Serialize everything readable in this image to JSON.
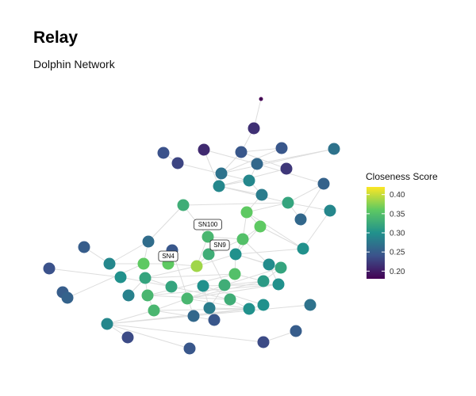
{
  "chart_data": {
    "type": "network",
    "title": "Relay",
    "subtitle": "Dolphin Network",
    "legend": {
      "title": "Closeness Score",
      "ticks": [
        0.2,
        0.25,
        0.3,
        0.35,
        0.4
      ],
      "tick_labels": [
        "0.20",
        "0.25",
        "0.30",
        "0.35",
        "0.40"
      ],
      "range": [
        0.18,
        0.42
      ],
      "placement": "right",
      "palette": [
        "#440154",
        "#3b528b",
        "#21918c",
        "#5ec962",
        "#fde725"
      ]
    },
    "edge_color": "#dddddd",
    "nodes": [
      {
        "id": "n1",
        "score": 0.18,
        "small": true
      },
      {
        "id": "n2",
        "score": 0.215
      },
      {
        "id": "n3",
        "score": 0.245
      },
      {
        "id": "n4",
        "score": 0.245
      },
      {
        "id": "n5",
        "score": 0.27
      },
      {
        "id": "n6",
        "score": 0.24
      },
      {
        "id": "n7",
        "score": 0.21
      },
      {
        "id": "n8",
        "score": 0.23
      },
      {
        "id": "n9",
        "score": 0.26
      },
      {
        "id": "n10",
        "score": 0.22
      },
      {
        "id": "n11",
        "score": 0.27
      },
      {
        "id": "n12",
        "score": 0.29
      },
      {
        "id": "n13",
        "score": 0.29
      },
      {
        "id": "n14",
        "score": 0.28
      },
      {
        "id": "n15",
        "score": 0.255
      },
      {
        "id": "n16",
        "score": 0.33
      },
      {
        "id": "n17",
        "score": 0.32
      },
      {
        "id": "n18",
        "score": 0.29
      },
      {
        "id": "n19",
        "score": 0.36
      },
      {
        "id": "n20",
        "score": 0.26
      },
      {
        "id": "n21",
        "score": 0.3
      },
      {
        "id": "n22",
        "score": 0.36
      },
      {
        "id": "n23",
        "score": 0.265
      },
      {
        "id": "SN100",
        "score": 0.34,
        "label": "SN100"
      },
      {
        "id": "n25",
        "score": 0.35
      },
      {
        "id": "n26",
        "score": 0.25
      },
      {
        "id": "n27",
        "score": 0.29
      },
      {
        "id": "SN9",
        "score": 0.33,
        "label": "SN9"
      },
      {
        "id": "n29",
        "score": 0.3
      },
      {
        "id": "n30",
        "score": 0.24
      },
      {
        "id": "n31",
        "score": 0.295
      },
      {
        "id": "n32",
        "score": 0.36
      },
      {
        "id": "SN4",
        "score": 0.36,
        "label": "SN4"
      },
      {
        "id": "n34",
        "score": 0.385
      },
      {
        "id": "n35",
        "score": 0.3
      },
      {
        "id": "n36",
        "score": 0.32
      },
      {
        "id": "n37",
        "score": 0.32
      },
      {
        "id": "n38",
        "score": 0.35
      },
      {
        "id": "n39",
        "score": 0.32
      },
      {
        "id": "n40",
        "score": 0.31
      },
      {
        "id": "n41",
        "score": 0.3
      },
      {
        "id": "n42",
        "score": 0.3
      },
      {
        "id": "n43",
        "score": 0.25
      },
      {
        "id": "n44",
        "score": 0.255
      },
      {
        "id": "n45",
        "score": 0.33
      },
      {
        "id": "n46",
        "score": 0.285
      },
      {
        "id": "n47",
        "score": 0.34
      },
      {
        "id": "n48",
        "score": 0.34
      },
      {
        "id": "n49",
        "score": 0.33
      },
      {
        "id": "n50",
        "score": 0.3
      },
      {
        "id": "n51",
        "score": 0.28
      },
      {
        "id": "n52",
        "score": 0.34
      },
      {
        "id": "n53",
        "score": 0.3
      },
      {
        "id": "n54",
        "score": 0.27
      },
      {
        "id": "n55",
        "score": 0.26
      },
      {
        "id": "n56",
        "score": 0.245
      },
      {
        "id": "n57",
        "score": 0.29
      },
      {
        "id": "n58",
        "score": 0.25
      },
      {
        "id": "n59",
        "score": 0.235
      },
      {
        "id": "n60",
        "score": 0.245
      },
      {
        "id": "n61",
        "score": 0.235
      },
      {
        "id": "n62",
        "score": 0.245
      }
    ],
    "edges": [
      [
        "n1",
        "n2"
      ],
      [
        "n2",
        "n3"
      ],
      [
        "n3",
        "n4"
      ],
      [
        "n3",
        "n10"
      ],
      [
        "n4",
        "n11"
      ],
      [
        "n3",
        "n11"
      ],
      [
        "n5",
        "n11"
      ],
      [
        "n5",
        "n9"
      ],
      [
        "n7",
        "n9"
      ],
      [
        "n7",
        "n13"
      ],
      [
        "n6",
        "n8"
      ],
      [
        "n8",
        "n12"
      ],
      [
        "n9",
        "n12"
      ],
      [
        "n9",
        "n15"
      ],
      [
        "n10",
        "n13"
      ],
      [
        "n11",
        "n13"
      ],
      [
        "n12",
        "n13"
      ],
      [
        "n12",
        "n14"
      ],
      [
        "n13",
        "n14"
      ],
      [
        "n13",
        "n17"
      ],
      [
        "n14",
        "n19"
      ],
      [
        "n16",
        "n17"
      ],
      [
        "n15",
        "n17"
      ],
      [
        "n15",
        "n20"
      ],
      [
        "n17",
        "n19"
      ],
      [
        "n17",
        "n18"
      ],
      [
        "n18",
        "n21"
      ],
      [
        "n19",
        "n22"
      ],
      [
        "n19",
        "n25"
      ],
      [
        "n22",
        "n25"
      ],
      [
        "n22",
        "n21"
      ],
      [
        "n19",
        "n21"
      ],
      [
        "n20",
        "n17"
      ],
      [
        "n22",
        "n29"
      ],
      [
        "n25",
        "n29"
      ],
      [
        "n25",
        "n31"
      ],
      [
        "n25",
        "SN9"
      ],
      [
        "n24",
        "n25"
      ],
      [
        "SN100",
        "n25"
      ],
      [
        "SN100",
        "n16"
      ],
      [
        "SN100",
        "n34"
      ],
      [
        "n23",
        "n27"
      ],
      [
        "n23",
        "n32"
      ],
      [
        "n27",
        "n32"
      ],
      [
        "n28",
        "n34"
      ],
      [
        "SN9",
        "n34"
      ],
      [
        "SN4",
        "n34"
      ],
      [
        "SN4",
        "n32"
      ],
      [
        "SN4",
        "n33"
      ],
      [
        "n32",
        "n33"
      ],
      [
        "n33",
        "n35"
      ],
      [
        "n34",
        "n36"
      ],
      [
        "n34",
        "n29"
      ],
      [
        "n29",
        "n38"
      ],
      [
        "n29",
        "n37"
      ],
      [
        "n31",
        "n37"
      ],
      [
        "n31",
        "n41"
      ],
      [
        "n30",
        "n35"
      ],
      [
        "n35",
        "n39"
      ],
      [
        "n33",
        "n39"
      ],
      [
        "n36",
        "n39"
      ],
      [
        "n36",
        "n38"
      ],
      [
        "n38",
        "n40"
      ],
      [
        "n38",
        "n47"
      ],
      [
        "n40",
        "n45"
      ],
      [
        "n40",
        "n48"
      ],
      [
        "n37",
        "n45"
      ],
      [
        "n41",
        "n48"
      ],
      [
        "n41",
        "n42"
      ],
      [
        "n45",
        "n48"
      ],
      [
        "n45",
        "n51"
      ],
      [
        "n42",
        "n51"
      ],
      [
        "n42",
        "n50"
      ],
      [
        "n48",
        "n52"
      ],
      [
        "n47",
        "n52"
      ],
      [
        "n47",
        "n49"
      ],
      [
        "n49",
        "n53"
      ],
      [
        "n52",
        "n53"
      ],
      [
        "n52",
        "n57"
      ],
      [
        "n53",
        "n57"
      ],
      [
        "n57",
        "n59"
      ],
      [
        "n57",
        "n60"
      ],
      [
        "n57",
        "n61"
      ],
      [
        "n56",
        "n52"
      ],
      [
        "n54",
        "n57"
      ],
      [
        "n55",
        "n53"
      ],
      [
        "n58",
        "n59"
      ],
      [
        "n62",
        "n55"
      ],
      [
        "n43",
        "n44"
      ],
      [
        "n44",
        "n32"
      ],
      [
        "n46",
        "n36"
      ],
      [
        "n26",
        "n27"
      ],
      [
        "n39",
        "n49"
      ],
      [
        "n33",
        "SN4"
      ],
      [
        "n36",
        "n47"
      ],
      [
        "n21",
        "n29"
      ],
      [
        "n16",
        "n23"
      ],
      [
        "n23",
        "n33"
      ],
      [
        "n48",
        "n53"
      ],
      [
        "n50",
        "n53"
      ],
      [
        "n51",
        "n53"
      ],
      [
        "n45",
        "SN9"
      ],
      [
        "n47",
        "n41"
      ],
      [
        "n29",
        "n31"
      ],
      [
        "n37",
        "n40"
      ]
    ]
  }
}
